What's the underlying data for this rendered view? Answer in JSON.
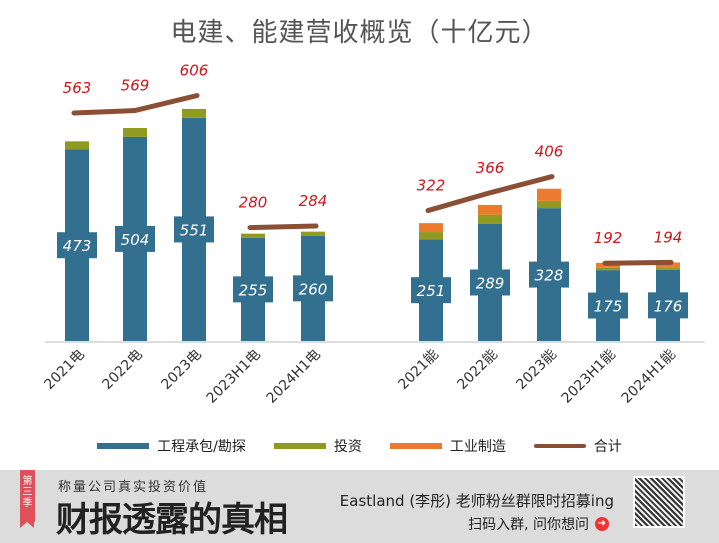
{
  "chart_data": {
    "type": "bar",
    "title": "电建、能建营收概览（十亿元）",
    "categories": [
      "2021电",
      "2022电",
      "2023电",
      "2023H1电",
      "2024H1电",
      "2021能",
      "2022能",
      "2023能",
      "2023H1能",
      "2024H1能"
    ],
    "series": [
      {
        "name": "工程承包/勘探",
        "type": "bar",
        "color": "#336f8e",
        "values": [
          473,
          504,
          551,
          255,
          260,
          251,
          289,
          328,
          175,
          176
        ]
      },
      {
        "name": "投资",
        "type": "bar",
        "color": "#8f9a1e",
        "values": [
          20,
          22,
          22,
          10,
          10,
          18,
          23,
          18,
          6,
          6
        ]
      },
      {
        "name": "工业制造",
        "type": "bar",
        "color": "#ec7b30",
        "values": [
          0,
          0,
          0,
          0,
          0,
          22,
          24,
          30,
          12,
          12
        ]
      },
      {
        "name": "合计",
        "type": "line",
        "color": "#8b4f36",
        "values": [
          563,
          569,
          606,
          280,
          284,
          322,
          366,
          406,
          192,
          194
        ]
      }
    ],
    "legend": "bottom",
    "grid": false
  },
  "footer": {
    "tag": "第三季",
    "subtitle": "称量公司真实投资价值",
    "brand": "财报透露的真相",
    "promo": "Eastland (李彤) 老师粉丝群限时招募ing",
    "scan": "扫码入群, 问你想问"
  }
}
